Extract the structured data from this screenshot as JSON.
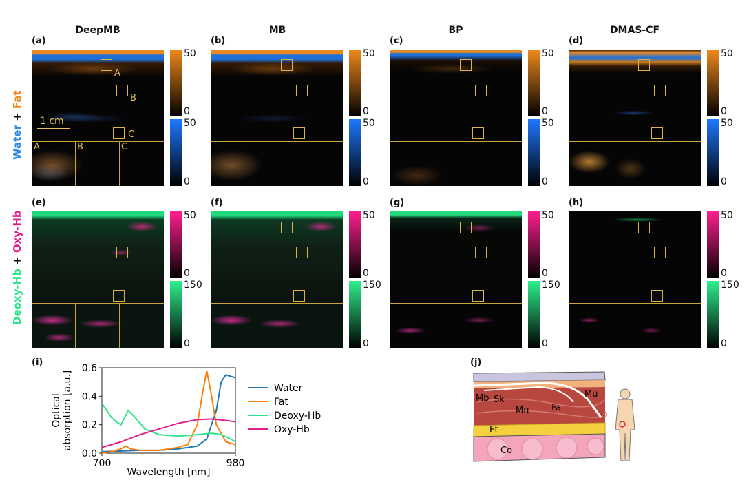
{
  "methods": [
    "DeepMB",
    "MB",
    "BP",
    "DMAS-CF"
  ],
  "panel_labels": {
    "top": [
      "(a)",
      "(b)",
      "(c)",
      "(d)"
    ],
    "bottom": [
      "(e)",
      "(f)",
      "(g)",
      "(h)"
    ],
    "spectrum": "(i)",
    "anatomy": "(j)"
  },
  "row_labels": {
    "top": {
      "part1": "Water",
      "plus": " + ",
      "part2": "Fat"
    },
    "bottom": {
      "part1": "Deoxy-Hb",
      "plus": " + ",
      "part2": "Oxy-Hb"
    }
  },
  "colorbars": {
    "top": {
      "upper_max": "50",
      "upper_min": "0",
      "lower_max": "50",
      "lower_min": "0"
    },
    "bottom": {
      "upper_max": "50",
      "upper_min": "0",
      "lower_max": "150",
      "lower_min": "0"
    }
  },
  "colors": {
    "water": "#1f77b4",
    "fat": "#ff7f0e",
    "deoxy": "#2ee68a",
    "oxy": "#e0208c",
    "roi": "#d9b44a"
  },
  "roi_labels": [
    "A",
    "B",
    "C"
  ],
  "scalebar": "1 cm",
  "anatomy": {
    "labels": [
      "Mb",
      "Sk",
      "Mu",
      "Fa",
      "Mu",
      "Ft",
      "Co"
    ]
  },
  "chart_data": {
    "type": "line",
    "xlabel": "Wavelength [nm]",
    "ylabel_line1": "Optical",
    "ylabel_line2": "absorption [a.u.]",
    "xlim": [
      700,
      980
    ],
    "ylim": [
      0,
      0.6
    ],
    "xtick_labels": [
      "700",
      "980"
    ],
    "ytick_labels": [
      "0.0",
      "0.2",
      "0.4",
      "0.6"
    ],
    "yticks": [
      0,
      0.2,
      0.4,
      0.6
    ],
    "legend_position": "right",
    "series": [
      {
        "name": "Water",
        "color": "#1f77b4",
        "x": [
          700,
          740,
          780,
          820,
          860,
          880,
          900,
          920,
          940,
          950,
          960,
          970,
          980
        ],
        "y": [
          0.01,
          0.015,
          0.02,
          0.02,
          0.03,
          0.04,
          0.05,
          0.1,
          0.3,
          0.5,
          0.55,
          0.54,
          0.53
        ]
      },
      {
        "name": "Fat",
        "color": "#ff7f0e",
        "x": [
          700,
          720,
          740,
          750,
          760,
          780,
          820,
          860,
          880,
          900,
          910,
          920,
          930,
          940,
          960,
          980
        ],
        "y": [
          0.0,
          0.01,
          0.03,
          0.05,
          0.03,
          0.02,
          0.02,
          0.04,
          0.06,
          0.2,
          0.4,
          0.58,
          0.4,
          0.2,
          0.08,
          0.06
        ]
      },
      {
        "name": "Deoxy-Hb",
        "color": "#2ee68a",
        "x": [
          700,
          720,
          730,
          740,
          755,
          770,
          790,
          820,
          860,
          900,
          930,
          950,
          970,
          980
        ],
        "y": [
          0.35,
          0.25,
          0.22,
          0.2,
          0.3,
          0.25,
          0.17,
          0.13,
          0.12,
          0.13,
          0.14,
          0.13,
          0.1,
          0.08
        ]
      },
      {
        "name": "Oxy-Hb",
        "color": "#e0208c",
        "x": [
          700,
          740,
          780,
          820,
          860,
          900,
          930,
          960,
          980
        ],
        "y": [
          0.04,
          0.08,
          0.13,
          0.17,
          0.21,
          0.235,
          0.24,
          0.23,
          0.22
        ]
      }
    ]
  }
}
